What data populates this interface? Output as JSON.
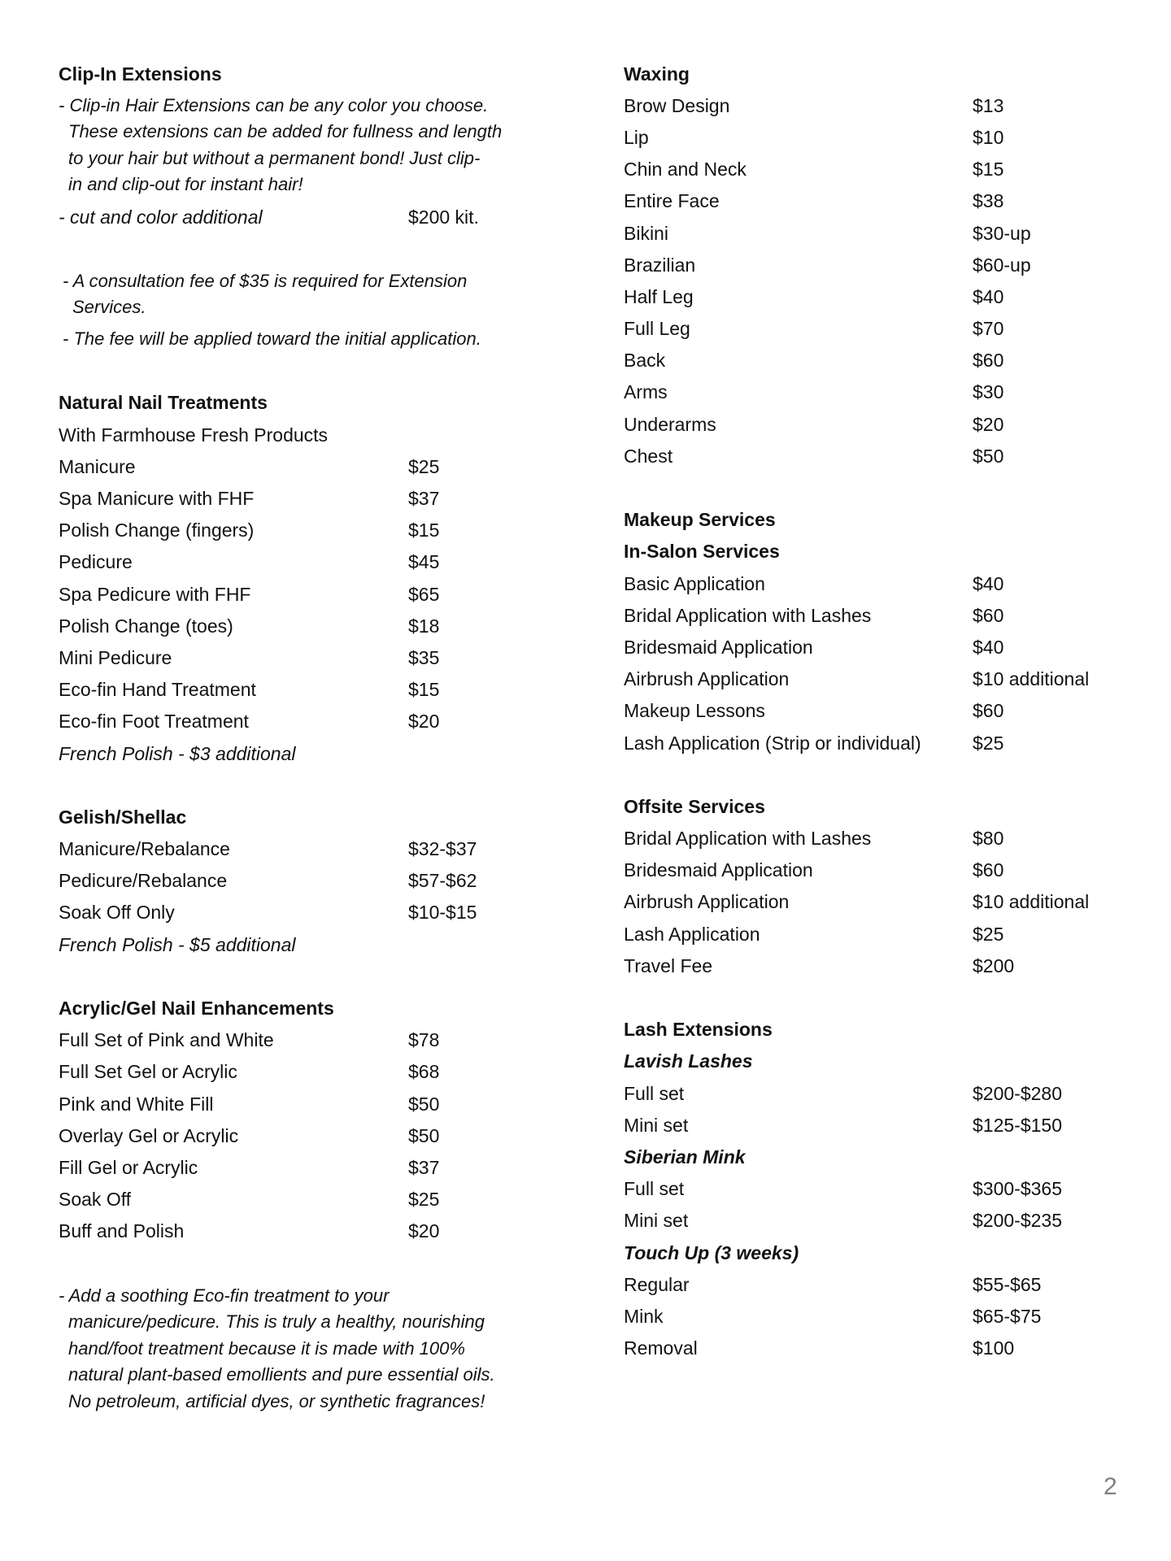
{
  "left": {
    "clip_in": {
      "title": "Clip-In Extensions",
      "description_lines": [
        "- Clip-in Hair Extensions can be any color you choose.",
        "These extensions can be added for fullness and length",
        "to your hair but without a permanent bond! Just clip-",
        "in and clip-out for instant hair!"
      ],
      "item": {
        "name": "- cut and color additional",
        "price": "$200 kit."
      },
      "consultation_lines": [
        "- A consultation fee of $35 is required for Extension",
        "Services."
      ],
      "fee_note": "- The fee will be applied toward the initial application."
    },
    "natural_nails": {
      "title": "Natural Nail Treatments",
      "subtitle": "With Farmhouse Fresh Products",
      "items": [
        {
          "name": "Manicure",
          "price": "$25"
        },
        {
          "name": "Spa Manicure with FHF",
          "price": "$37"
        },
        {
          "name": "Polish Change (fingers)",
          "price": "$15"
        },
        {
          "name": "Pedicure",
          "price": "$45"
        },
        {
          "name": "Spa Pedicure with FHF",
          "price": "$65"
        },
        {
          "name": "Polish Change (toes)",
          "price": "$18"
        },
        {
          "name": "Mini Pedicure",
          "price": "$35"
        },
        {
          "name": "Eco-fin Hand Treatment",
          "price": "$15"
        },
        {
          "name": "Eco-fin Foot Treatment",
          "price": "$20"
        }
      ],
      "note": "French Polish - $3 additional"
    },
    "gelish": {
      "title": "Gelish/Shellac",
      "items": [
        {
          "name": "Manicure/Rebalance",
          "price": "$32-$37"
        },
        {
          "name": "Pedicure/Rebalance",
          "price": "$57-$62"
        },
        {
          "name": "Soak Off Only",
          "price": "$10-$15"
        }
      ],
      "note": "French Polish - $5 additional"
    },
    "acrylic": {
      "title": "Acrylic/Gel Nail Enhancements",
      "items": [
        {
          "name": "Full Set of Pink and White",
          "price": "$78"
        },
        {
          "name": "Full Set Gel or Acrylic",
          "price": "$68"
        },
        {
          "name": "Pink and White Fill",
          "price": "$50"
        },
        {
          "name": "Overlay Gel or Acrylic",
          "price": "$50"
        },
        {
          "name": "Fill Gel or Acrylic",
          "price": "$37"
        },
        {
          "name": "Soak Off",
          "price": "$25"
        },
        {
          "name": "Buff and Polish",
          "price": "$20"
        }
      ]
    },
    "ecofin_lines": [
      "- Add a soothing Eco-fin treatment to your",
      "manicure/pedicure. This is truly a healthy, nourishing",
      "hand/foot treatment because it is made with 100%",
      "natural plant-based emollients and pure essential oils.",
      "No petroleum, artificial dyes, or synthetic fragrances!"
    ]
  },
  "right": {
    "waxing": {
      "title": "Waxing",
      "items": [
        {
          "name": "Brow Design",
          "price": "$13"
        },
        {
          "name": "Lip",
          "price": "$10"
        },
        {
          "name": "Chin and Neck",
          "price": "$15"
        },
        {
          "name": "Entire Face",
          "price": "$38"
        },
        {
          "name": "Bikini",
          "price": "$30-up"
        },
        {
          "name": "Brazilian",
          "price": "$60-up"
        },
        {
          "name": "Half Leg",
          "price": "$40"
        },
        {
          "name": "Full Leg",
          "price": "$70"
        },
        {
          "name": "Back",
          "price": "$60"
        },
        {
          "name": "Arms",
          "price": "$30"
        },
        {
          "name": "Underarms",
          "price": "$20"
        },
        {
          "name": "Chest",
          "price": "$50"
        }
      ]
    },
    "makeup": {
      "title": "Makeup Services",
      "subtitle": "In-Salon Services",
      "items": [
        {
          "name": "Basic Application",
          "price": "$40"
        },
        {
          "name": "Bridal Application with Lashes",
          "price": "$60"
        },
        {
          "name": "Bridesmaid Application",
          "price": "$40"
        },
        {
          "name": "Airbrush Application",
          "price": "$10 additional"
        },
        {
          "name": "Makeup Lessons",
          "price": "$60"
        },
        {
          "name": "Lash Application (Strip or individual)",
          "price": "$25"
        }
      ]
    },
    "offsite": {
      "title": "Offsite Services",
      "items": [
        {
          "name": "Bridal Application with Lashes",
          "price": "$80"
        },
        {
          "name": "Bridesmaid Application",
          "price": "$60"
        },
        {
          "name": "Airbrush Application",
          "price": "$10 additional"
        },
        {
          "name": "Lash Application",
          "price": "$25"
        },
        {
          "name": "Travel Fee",
          "price": "$200"
        }
      ]
    },
    "lash": {
      "title": "Lash Extensions",
      "groups": [
        {
          "name": "Lavish Lashes",
          "items": [
            {
              "name": "Full set",
              "price": "$200-$280"
            },
            {
              "name": "Mini set",
              "price": "$125-$150"
            }
          ]
        },
        {
          "name": "Siberian Mink",
          "items": [
            {
              "name": "Full set",
              "price": "$300-$365"
            },
            {
              "name": "Mini set",
              "price": "$200-$235"
            }
          ]
        },
        {
          "name": "Touch Up (3 weeks)",
          "items": [
            {
              "name": "Regular",
              "price": "$55-$65"
            },
            {
              "name": "Mink",
              "price": "$65-$75"
            },
            {
              "name": "Removal",
              "price": "$100"
            }
          ]
        }
      ]
    }
  },
  "page_number": "2"
}
